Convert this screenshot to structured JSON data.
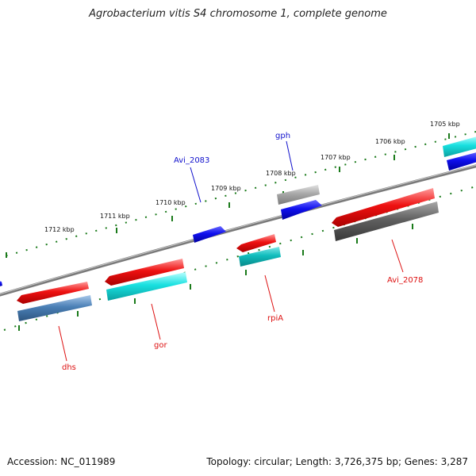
{
  "title": "Agrobacterium vitis S4 chromosome 1, complete genome",
  "footer": {
    "accession": "Accession: NC_011989",
    "summary": "Topology: circular; Length: 3,726,375 bp; Genes: 3,287"
  },
  "ticks": [
    "1712 kbp",
    "1711 kbp",
    "1710 kbp",
    "1709 kbp",
    "1708 kbp",
    "1707 kbp",
    "1706 kbp",
    "1705 kbp"
  ],
  "gene_labels": {
    "gph": "gph",
    "avi_2083": "Avi_2083",
    "avi_2078": "Avi_2078",
    "rpia": "rpiA",
    "gor": "gor",
    "dhs": "dhs"
  },
  "colors": {
    "backbone": "#808080",
    "tick_marks": "#1a7a1a",
    "red": "#ee1111",
    "cyan": "#18d0d0",
    "blue": "#1010ee",
    "steelblue": "#4a7fb5",
    "darkgray": "#606060",
    "lightgray": "#a8a8a8",
    "label_blue": "#1010cc",
    "label_red": "#dd1111"
  }
}
